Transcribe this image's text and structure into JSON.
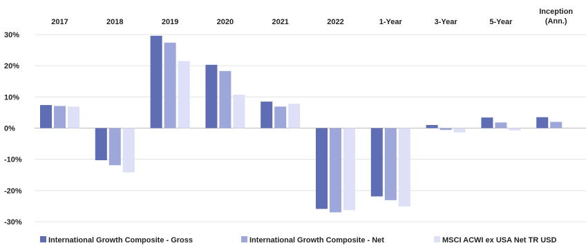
{
  "chart_data": {
    "type": "bar",
    "title": "",
    "xlabel": "",
    "ylabel": "",
    "categories": [
      "2017",
      "2018",
      "2019",
      "2020",
      "2021",
      "2022",
      "1-Year",
      "3-Year",
      "5-Year",
      "Inception\n(Ann.)"
    ],
    "category_axis_position": "top",
    "ylim": [
      -30,
      30
    ],
    "y_ticks": [
      30,
      20,
      10,
      0,
      -10,
      -20,
      -30
    ],
    "y_tick_labels": [
      "30%",
      "20%",
      "10%",
      "0%",
      "-10%",
      "-20%",
      "-30%"
    ],
    "grid": true,
    "legend_position": "bottom",
    "series": [
      {
        "name": "International Growth Composite - Gross",
        "color": "#5f6db5",
        "values": [
          7.4,
          -10.3,
          29.6,
          20.3,
          8.5,
          -25.9,
          -21.9,
          1.0,
          3.4,
          3.5
        ]
      },
      {
        "name": "International Growth Composite - Net",
        "color": "#9ea7d9",
        "values": [
          7.1,
          -11.9,
          27.4,
          18.3,
          6.9,
          -27.0,
          -23.1,
          -0.6,
          1.8,
          2.0
        ]
      },
      {
        "name": "MSCI ACWI ex USA Net TR USD",
        "color": "#dde0f6",
        "values": [
          6.9,
          -14.2,
          21.5,
          10.7,
          7.8,
          -26.3,
          -25.1,
          -1.4,
          -0.8,
          null
        ]
      }
    ]
  }
}
